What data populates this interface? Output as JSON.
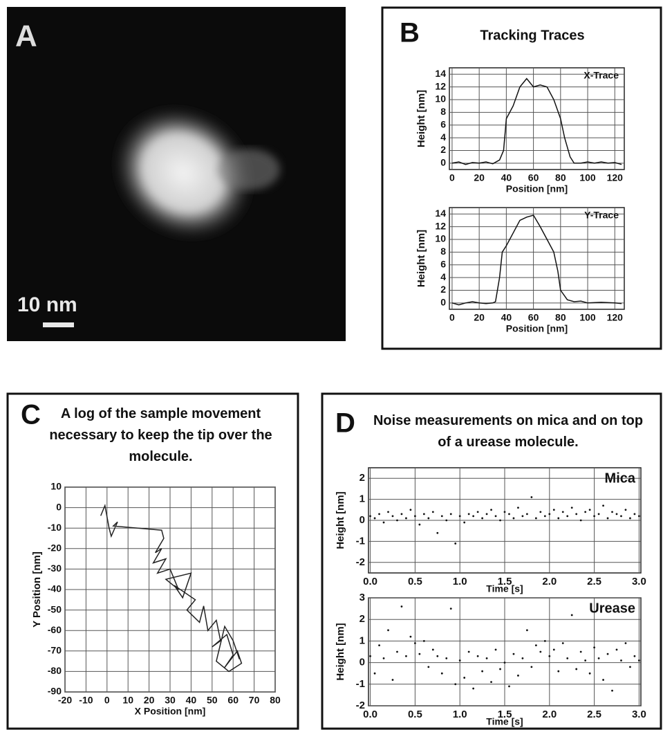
{
  "panels": {
    "a": {
      "label": "A",
      "scale_bar": "10 nm"
    },
    "b": {
      "label": "B",
      "title": "Tracking Traces"
    },
    "c": {
      "label": "C"
    },
    "d": {
      "label": "D",
      "title": "Noise measurements on mica and on top of a urease molecule."
    }
  },
  "chart_data": [
    {
      "type": "line",
      "xlabel": "Position [nm]",
      "ylabel": "Height [nm]",
      "xlim": [
        -2,
        127
      ],
      "ylim": [
        -1,
        15
      ],
      "xticks": [
        0,
        20,
        40,
        60,
        80,
        100,
        120
      ],
      "yticks": [
        0,
        2,
        4,
        6,
        8,
        10,
        12,
        14
      ],
      "grid": true,
      "x": [
        0,
        5,
        10,
        15,
        20,
        25,
        30,
        35,
        38,
        40,
        45,
        50,
        55,
        60,
        65,
        70,
        75,
        80,
        83,
        87,
        90,
        95,
        100,
        105,
        110,
        115,
        120,
        125
      ],
      "series": [
        {
          "name": "X-Trace",
          "color": "#111111",
          "values": [
            0,
            0.2,
            -0.2,
            0.1,
            0,
            0.2,
            -0.1,
            0.5,
            2,
            7,
            9,
            12,
            13.3,
            12,
            12.3,
            12,
            10,
            7,
            4,
            1,
            0,
            0,
            0.2,
            0,
            0.2,
            0,
            0.1,
            -0.2
          ]
        }
      ]
    },
    {
      "type": "line",
      "xlabel": "Position [nm]",
      "ylabel": "Height [nm]",
      "xlim": [
        -2,
        127
      ],
      "ylim": [
        -1,
        15
      ],
      "xticks": [
        0,
        20,
        40,
        60,
        80,
        100,
        120
      ],
      "yticks": [
        0,
        2,
        4,
        6,
        8,
        10,
        12,
        14
      ],
      "grid": true,
      "x": [
        0,
        5,
        10,
        15,
        20,
        25,
        30,
        32,
        35,
        37,
        40,
        45,
        50,
        55,
        60,
        65,
        70,
        75,
        78,
        80,
        85,
        90,
        95,
        100,
        110,
        120,
        125
      ],
      "series": [
        {
          "name": "Y-Trace",
          "color": "#111111",
          "values": [
            0,
            -0.3,
            0,
            0.2,
            0,
            -0.1,
            0,
            0.2,
            4,
            8,
            9,
            11,
            13,
            13.5,
            13.8,
            12,
            10,
            8,
            5,
            2,
            0.5,
            0.2,
            0.3,
            0,
            0.1,
            0,
            -0.1
          ]
        }
      ]
    },
    {
      "type": "line",
      "title": "A log of the sample movement necessary to keep the tip over the molecule.",
      "xlabel": "X Position [nm]",
      "ylabel": "Y Position [nm]",
      "xlim": [
        -20,
        80
      ],
      "ylim": [
        -90,
        10
      ],
      "xticks": [
        -20,
        -10,
        0,
        10,
        20,
        30,
        40,
        50,
        60,
        70,
        80
      ],
      "yticks": [
        -90,
        -80,
        -70,
        -60,
        -50,
        -40,
        -30,
        -20,
        -10,
        0,
        10
      ],
      "grid": true,
      "x": [
        -3,
        -1,
        1,
        2,
        5,
        3,
        26,
        27,
        23,
        26,
        22,
        28,
        24,
        30,
        34,
        28,
        40,
        36,
        32,
        42,
        38,
        44,
        46,
        48,
        52,
        54,
        50,
        57,
        60,
        56,
        62,
        64,
        58,
        52,
        56,
        60,
        63
      ],
      "series": [
        {
          "color": "#222222",
          "values": [
            -4,
            1,
            -10,
            -14,
            -7,
            -9,
            -11,
            -15,
            -22,
            -20,
            -27,
            -25,
            -32,
            -30,
            -40,
            -35,
            -32,
            -44,
            -38,
            -45,
            -50,
            -56,
            -48,
            -60,
            -55,
            -65,
            -68,
            -62,
            -72,
            -78,
            -70,
            -76,
            -80,
            -75,
            -58,
            -65,
            -74
          ]
        }
      ]
    },
    {
      "type": "scatter",
      "xlabel": "Time [s]",
      "ylabel": "Height [nm]",
      "xlim": [
        -0.02,
        3.02
      ],
      "ylim": [
        -2.5,
        2.5
      ],
      "xticks": [
        {
          "value": 0,
          "label": "0.0"
        },
        0.5,
        {
          "value": 1,
          "label": "1.0"
        },
        1.5,
        {
          "value": 2,
          "label": "2.0"
        },
        2.5,
        {
          "value": 3,
          "label": "3.0"
        }
      ],
      "yticks": [
        -2,
        -1,
        0,
        1,
        2
      ],
      "grid": true,
      "x": [
        0,
        0.05,
        0.1,
        0.15,
        0.2,
        0.25,
        0.3,
        0.35,
        0.4,
        0.45,
        0.5,
        0.55,
        0.6,
        0.65,
        0.7,
        0.75,
        0.8,
        0.85,
        0.9,
        0.95,
        1,
        1.05,
        1.1,
        1.15,
        1.2,
        1.25,
        1.3,
        1.35,
        1.4,
        1.45,
        1.5,
        1.55,
        1.6,
        1.65,
        1.7,
        1.75,
        1.8,
        1.85,
        1.9,
        1.95,
        2,
        2.05,
        2.1,
        2.15,
        2.2,
        2.25,
        2.3,
        2.35,
        2.4,
        2.45,
        2.5,
        2.55,
        2.6,
        2.65,
        2.7,
        2.75,
        2.8,
        2.85,
        2.9,
        2.95,
        3
      ],
      "series": [
        {
          "name": "Mica",
          "color": "#111111",
          "values": [
            0.2,
            0.1,
            0.3,
            -0.1,
            0.4,
            0.2,
            0.0,
            0.3,
            0.1,
            0.5,
            0.2,
            -0.2,
            0.3,
            0.1,
            0.4,
            -0.6,
            0.2,
            0.0,
            0.3,
            -1.1,
            0.2,
            -0.1,
            0.3,
            0.2,
            0.4,
            0.1,
            0.3,
            0.5,
            0.2,
            0.0,
            0.4,
            0.3,
            0.1,
            0.6,
            0.2,
            0.3,
            1.1,
            0.1,
            0.4,
            0.2,
            0.3,
            0.5,
            0.1,
            0.4,
            0.2,
            0.6,
            0.3,
            0.0,
            0.4,
            0.5,
            0.2,
            0.3,
            0.7,
            0.1,
            0.4,
            0.3,
            0.2,
            0.5,
            0.1,
            0.3,
            0.2
          ]
        }
      ]
    },
    {
      "type": "scatter",
      "xlabel": "Time [s]",
      "ylabel": "Height [nm]",
      "xlim": [
        -0.02,
        3.02
      ],
      "ylim": [
        -2,
        3
      ],
      "xticks": [
        {
          "value": 0,
          "label": "0.0"
        },
        0.5,
        {
          "value": 1,
          "label": "1.0"
        },
        1.5,
        {
          "value": 2,
          "label": "2.0"
        },
        2.5,
        {
          "value": 3,
          "label": "3.0"
        }
      ],
      "yticks": [
        -2,
        -1,
        0,
        1,
        2,
        3
      ],
      "grid": true,
      "x": [
        0,
        0.05,
        0.1,
        0.15,
        0.2,
        0.25,
        0.3,
        0.35,
        0.4,
        0.45,
        0.5,
        0.55,
        0.6,
        0.65,
        0.7,
        0.75,
        0.8,
        0.85,
        0.9,
        0.95,
        1,
        1.05,
        1.1,
        1.15,
        1.2,
        1.25,
        1.3,
        1.35,
        1.4,
        1.45,
        1.5,
        1.55,
        1.6,
        1.65,
        1.7,
        1.75,
        1.8,
        1.85,
        1.9,
        1.95,
        2,
        2.05,
        2.1,
        2.15,
        2.2,
        2.25,
        2.3,
        2.35,
        2.4,
        2.45,
        2.5,
        2.55,
        2.6,
        2.65,
        2.7,
        2.75,
        2.8,
        2.85,
        2.9,
        2.95,
        3
      ],
      "series": [
        {
          "name": "Urease",
          "color": "#111111",
          "values": [
            0.3,
            -0.5,
            0.8,
            0.2,
            1.5,
            -0.8,
            0.5,
            2.6,
            0.3,
            1.2,
            0.9,
            0.4,
            1.0,
            -0.2,
            0.6,
            0.3,
            -0.5,
            0.2,
            2.5,
            -1.0,
            0.1,
            -0.7,
            0.5,
            -1.2,
            0.3,
            -0.4,
            0.2,
            -0.9,
            0.6,
            -0.3,
            0.0,
            -1.1,
            0.4,
            -0.6,
            0.2,
            1.5,
            -0.2,
            0.8,
            0.5,
            1.0,
            0.3,
            0.6,
            -0.4,
            0.9,
            0.2,
            2.2,
            -0.3,
            0.5,
            0.1,
            -0.5,
            0.7,
            0.2,
            -0.8,
            0.4,
            -1.3,
            0.6,
            0.1,
            0.9,
            -0.2,
            0.3,
            0.1
          ]
        }
      ]
    }
  ]
}
